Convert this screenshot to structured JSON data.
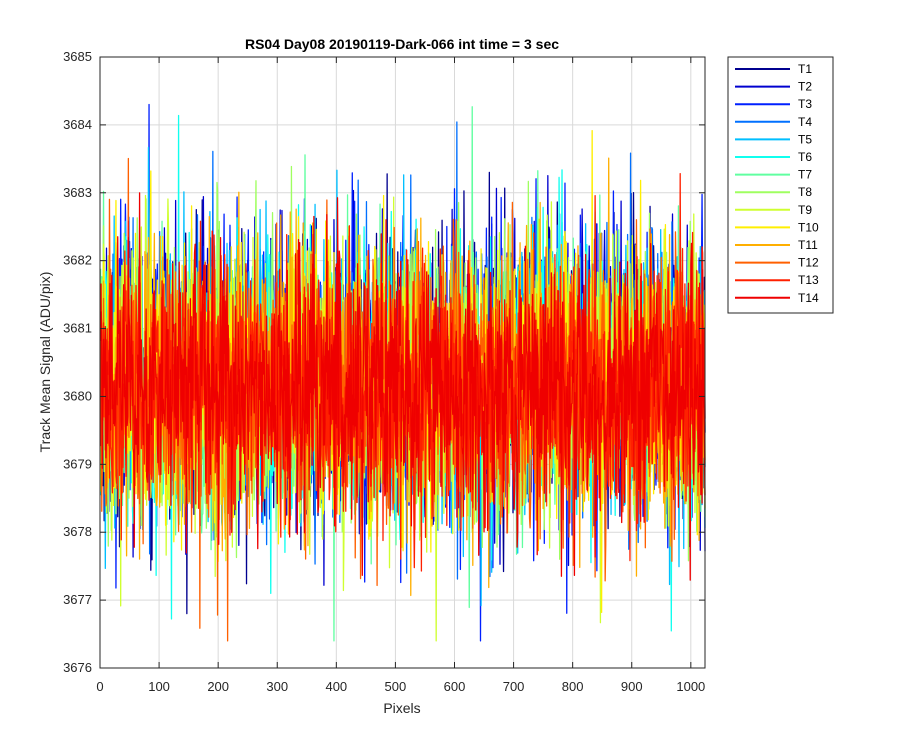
{
  "chart_data": {
    "type": "line",
    "title": "RS04 Day08 20190119-Dark-066 int time = 3 sec",
    "xlabel": "Pixels",
    "ylabel": "Track Mean Signal (ADU/pix)",
    "xlim": [
      0,
      1024
    ],
    "ylim": [
      3676,
      3685
    ],
    "xticks": [
      0,
      100,
      200,
      300,
      400,
      500,
      600,
      700,
      800,
      900,
      1000
    ],
    "yticks": [
      3676,
      3677,
      3678,
      3679,
      3680,
      3681,
      3682,
      3683,
      3684,
      3685
    ],
    "grid": true,
    "legend_position": "outside-top-right",
    "n_pixels": 1024,
    "series": [
      {
        "name": "T1",
        "color": "#00008f",
        "mean": 3680.3,
        "spread": 1.0
      },
      {
        "name": "T2",
        "color": "#0000cf",
        "mean": 3680.3,
        "spread": 1.0
      },
      {
        "name": "T3",
        "color": "#0020ff",
        "mean": 3680.3,
        "spread": 1.0
      },
      {
        "name": "T4",
        "color": "#0070ff",
        "mean": 3680.25,
        "spread": 1.0
      },
      {
        "name": "T5",
        "color": "#00bfff",
        "mean": 3680.25,
        "spread": 1.0
      },
      {
        "name": "T6",
        "color": "#10ffef",
        "mean": 3680.25,
        "spread": 1.0
      },
      {
        "name": "T7",
        "color": "#60ffa0",
        "mean": 3680.2,
        "spread": 1.0
      },
      {
        "name": "T8",
        "color": "#9fff60",
        "mean": 3680.2,
        "spread": 1.0
      },
      {
        "name": "T9",
        "color": "#cfff30",
        "mean": 3680.2,
        "spread": 1.0
      },
      {
        "name": "T10",
        "color": "#ffef00",
        "mean": 3680.2,
        "spread": 1.0
      },
      {
        "name": "T11",
        "color": "#ffaf00",
        "mean": 3680.15,
        "spread": 1.0
      },
      {
        "name": "T12",
        "color": "#ff6000",
        "mean": 3680.15,
        "spread": 1.0
      },
      {
        "name": "T13",
        "color": "#ff2000",
        "mean": 3680.1,
        "spread": 0.95
      },
      {
        "name": "T14",
        "color": "#ef0000",
        "mean": 3680.1,
        "spread": 0.95
      }
    ]
  }
}
